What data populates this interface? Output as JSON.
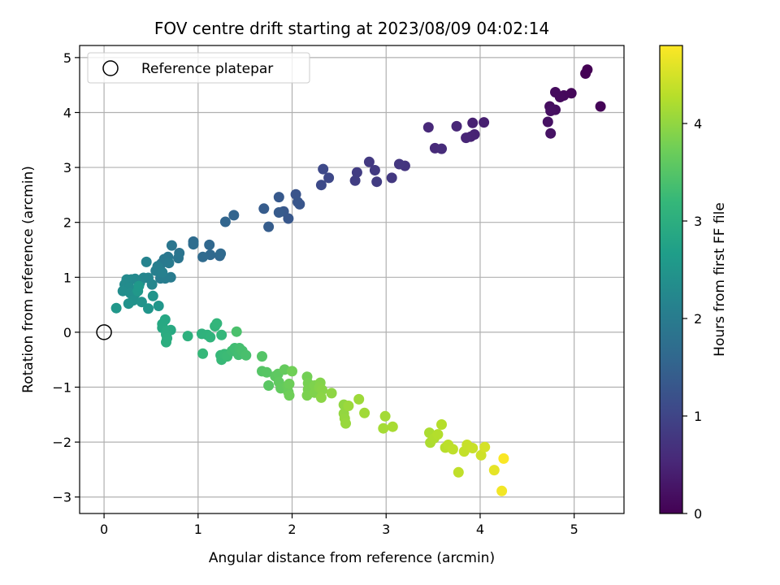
{
  "chart_data": {
    "type": "scatter",
    "title": "FOV centre drift starting at 2023/08/09 04:02:14",
    "xlabel": "Angular distance from reference (arcmin)",
    "ylabel": "Rotation from reference (arcmin)",
    "xlim": [
      -0.26,
      5.53
    ],
    "ylim": [
      -3.3,
      5.22
    ],
    "xticks": [
      0,
      1,
      2,
      3,
      4,
      5
    ],
    "yticks": [
      -3,
      -2,
      -1,
      0,
      1,
      2,
      3,
      4,
      5
    ],
    "grid": true,
    "legend": {
      "position": "top-left",
      "entries": [
        "Reference platepar"
      ]
    },
    "reference_point": {
      "label": "Reference platepar",
      "x": 0,
      "y": 0
    },
    "colorbar": {
      "label": "Hours from first FF file",
      "colormap": "viridis",
      "range": [
        0,
        4.8
      ],
      "ticks": [
        0,
        1,
        2,
        3,
        4
      ]
    },
    "colormap_stops": [
      "#440154",
      "#482878",
      "#3e4989",
      "#31688e",
      "#26828e",
      "#1f9e89",
      "#35b779",
      "#6ece58",
      "#b5de2b",
      "#fde725"
    ],
    "series": [
      {
        "points": [
          [
            5.14,
            4.78,
            0.0
          ],
          [
            5.12,
            4.71,
            0.02
          ],
          [
            5.28,
            4.11,
            0.04
          ],
          [
            4.97,
            4.35,
            0.08
          ],
          [
            4.89,
            4.31,
            0.1
          ],
          [
            4.85,
            4.28,
            0.12
          ],
          [
            4.8,
            4.37,
            0.14
          ],
          [
            4.74,
            4.11,
            0.16
          ],
          [
            4.8,
            4.05,
            0.18
          ],
          [
            4.75,
            4.03,
            0.2
          ],
          [
            4.72,
            3.83,
            0.22
          ],
          [
            4.75,
            3.62,
            0.24
          ],
          [
            4.04,
            3.82,
            0.42
          ],
          [
            3.92,
            3.81,
            0.44
          ],
          [
            3.94,
            3.6,
            0.46
          ],
          [
            3.9,
            3.56,
            0.48
          ],
          [
            3.85,
            3.54,
            0.5
          ],
          [
            3.75,
            3.75,
            0.52
          ],
          [
            3.45,
            3.73,
            0.55
          ],
          [
            3.52,
            3.35,
            0.57
          ],
          [
            3.59,
            3.34,
            0.59
          ],
          [
            3.2,
            3.03,
            0.75
          ],
          [
            3.14,
            3.06,
            0.77
          ],
          [
            3.06,
            2.81,
            0.79
          ],
          [
            2.82,
            3.1,
            0.81
          ],
          [
            2.88,
            2.95,
            0.83
          ],
          [
            2.9,
            2.74,
            0.85
          ],
          [
            2.69,
            2.91,
            0.87
          ],
          [
            2.67,
            2.76,
            0.89
          ],
          [
            2.39,
            2.81,
            1.05
          ],
          [
            2.33,
            2.97,
            1.07
          ],
          [
            2.31,
            2.68,
            1.09
          ],
          [
            2.04,
            2.51,
            1.25
          ],
          [
            2.06,
            2.37,
            1.27
          ],
          [
            2.08,
            2.33,
            1.29
          ],
          [
            1.96,
            2.07,
            1.31
          ],
          [
            1.91,
            2.2,
            1.33
          ],
          [
            1.86,
            2.46,
            1.35
          ],
          [
            1.86,
            2.18,
            1.37
          ],
          [
            1.7,
            2.25,
            1.39
          ],
          [
            1.75,
            1.92,
            1.41
          ],
          [
            1.38,
            2.13,
            1.55
          ],
          [
            1.29,
            2.01,
            1.57
          ],
          [
            1.23,
            1.39,
            1.59
          ],
          [
            1.12,
            1.59,
            1.61
          ],
          [
            1.13,
            1.41,
            1.63
          ],
          [
            1.24,
            1.43,
            1.65
          ],
          [
            1.05,
            1.37,
            1.67
          ],
          [
            0.95,
            1.65,
            1.69
          ],
          [
            0.95,
            1.6,
            1.71
          ],
          [
            0.8,
            1.44,
            1.85
          ],
          [
            0.79,
            1.35,
            1.87
          ],
          [
            0.72,
            1.58,
            1.89
          ],
          [
            0.68,
            1.37,
            1.91
          ],
          [
            0.64,
            1.33,
            1.93
          ],
          [
            0.61,
            1.25,
            1.95
          ],
          [
            0.69,
            1.26,
            1.97
          ],
          [
            0.71,
            1.0,
            1.99
          ],
          [
            0.6,
            0.98,
            2.01
          ],
          [
            0.65,
            0.98,
            2.03
          ],
          [
            0.57,
            1.2,
            2.05
          ],
          [
            0.55,
            1.12,
            2.07
          ],
          [
            0.62,
            1.09,
            2.09
          ],
          [
            0.45,
            1.28,
            2.15
          ],
          [
            0.47,
            0.99,
            2.17
          ],
          [
            0.42,
            0.99,
            2.19
          ],
          [
            0.51,
            0.87,
            2.21
          ],
          [
            0.38,
            0.9,
            2.23
          ],
          [
            0.33,
            0.97,
            2.25
          ],
          [
            0.29,
            0.96,
            2.27
          ],
          [
            0.24,
            0.96,
            2.29
          ],
          [
            0.22,
            0.87,
            2.31
          ],
          [
            0.27,
            0.81,
            2.33
          ],
          [
            0.2,
            0.75,
            2.35
          ],
          [
            0.28,
            0.71,
            2.37
          ],
          [
            0.33,
            0.7,
            2.39
          ],
          [
            0.31,
            0.58,
            2.41
          ],
          [
            0.26,
            0.52,
            2.43
          ],
          [
            0.4,
            0.55,
            2.45
          ],
          [
            0.52,
            0.66,
            2.47
          ],
          [
            0.47,
            0.43,
            2.49
          ],
          [
            0.58,
            0.48,
            2.51
          ],
          [
            0.13,
            0.44,
            2.53
          ],
          [
            0.36,
            0.75,
            2.55
          ],
          [
            0.37,
            0.84,
            2.57
          ],
          [
            0.65,
            0.23,
            2.85
          ],
          [
            0.62,
            0.15,
            2.87
          ],
          [
            0.62,
            0.08,
            2.89
          ],
          [
            0.71,
            0.04,
            2.91
          ],
          [
            0.67,
            0.03,
            2.93
          ],
          [
            0.66,
            -0.04,
            2.95
          ],
          [
            0.67,
            -0.11,
            2.97
          ],
          [
            0.66,
            -0.18,
            2.99
          ],
          [
            0.89,
            -0.07,
            3.05
          ],
          [
            1.04,
            -0.03,
            3.07
          ],
          [
            1.1,
            -0.05,
            3.09
          ],
          [
            1.13,
            -0.09,
            3.11
          ],
          [
            1.18,
            0.11,
            3.13
          ],
          [
            1.2,
            0.16,
            3.15
          ],
          [
            1.25,
            -0.05,
            3.17
          ],
          [
            1.05,
            -0.39,
            3.19
          ],
          [
            1.24,
            -0.42,
            3.21
          ],
          [
            1.25,
            -0.5,
            3.23
          ],
          [
            1.28,
            -0.4,
            3.25
          ],
          [
            1.31,
            -0.44,
            3.27
          ],
          [
            1.36,
            -0.34,
            3.29
          ],
          [
            1.39,
            -0.29,
            3.31
          ],
          [
            1.43,
            -0.41,
            3.33
          ],
          [
            1.44,
            -0.29,
            3.35
          ],
          [
            1.47,
            -0.34,
            3.37
          ],
          [
            1.51,
            -0.42,
            3.39
          ],
          [
            1.41,
            0.01,
            3.41
          ],
          [
            1.68,
            -0.44,
            3.49
          ],
          [
            1.68,
            -0.71,
            3.51
          ],
          [
            1.73,
            -0.73,
            3.53
          ],
          [
            1.75,
            -0.97,
            3.55
          ],
          [
            1.82,
            -0.8,
            3.57
          ],
          [
            1.85,
            -0.76,
            3.59
          ],
          [
            1.86,
            -0.91,
            3.61
          ],
          [
            1.88,
            -1.02,
            3.63
          ],
          [
            1.92,
            -0.68,
            3.65
          ],
          [
            1.95,
            -0.98,
            3.67
          ],
          [
            1.96,
            -1.09,
            3.69
          ],
          [
            1.97,
            -0.94,
            3.71
          ],
          [
            1.97,
            -1.15,
            3.73
          ],
          [
            2.0,
            -0.71,
            3.75
          ],
          [
            2.16,
            -0.81,
            3.77
          ],
          [
            2.17,
            -0.93,
            3.79
          ],
          [
            2.17,
            -1.04,
            3.81
          ],
          [
            2.16,
            -1.15,
            3.83
          ],
          [
            2.24,
            -0.97,
            3.85
          ],
          [
            2.24,
            -1.1,
            3.87
          ],
          [
            2.3,
            -0.92,
            3.89
          ],
          [
            2.29,
            -1.01,
            3.91
          ],
          [
            2.32,
            -1.05,
            3.93
          ],
          [
            2.31,
            -1.19,
            3.95
          ],
          [
            2.42,
            -1.11,
            3.97
          ],
          [
            2.55,
            -1.32,
            3.99
          ],
          [
            2.55,
            -1.48,
            4.01
          ],
          [
            2.56,
            -1.57,
            4.03
          ],
          [
            2.57,
            -1.66,
            4.05
          ],
          [
            2.6,
            -1.34,
            4.07
          ],
          [
            2.71,
            -1.22,
            4.09
          ],
          [
            2.77,
            -1.47,
            4.11
          ],
          [
            2.99,
            -1.53,
            4.13
          ],
          [
            2.97,
            -1.75,
            4.15
          ],
          [
            3.07,
            -1.72,
            4.17
          ],
          [
            3.46,
            -1.83,
            4.19
          ],
          [
            3.47,
            -2.01,
            4.21
          ],
          [
            3.51,
            -1.93,
            4.23
          ],
          [
            3.55,
            -1.86,
            4.25
          ],
          [
            3.59,
            -1.68,
            4.27
          ],
          [
            3.63,
            -2.1,
            4.29
          ],
          [
            3.66,
            -2.05,
            4.31
          ],
          [
            3.71,
            -2.13,
            4.33
          ],
          [
            3.77,
            -2.55,
            4.35
          ],
          [
            3.83,
            -2.17,
            4.37
          ],
          [
            3.86,
            -2.05,
            4.39
          ],
          [
            3.92,
            -2.11,
            4.41
          ],
          [
            4.01,
            -2.24,
            4.45
          ],
          [
            4.05,
            -2.09,
            4.5
          ],
          [
            4.15,
            -2.51,
            4.62
          ],
          [
            4.23,
            -2.89,
            4.72
          ],
          [
            4.25,
            -2.3,
            4.78
          ]
        ]
      }
    ]
  }
}
